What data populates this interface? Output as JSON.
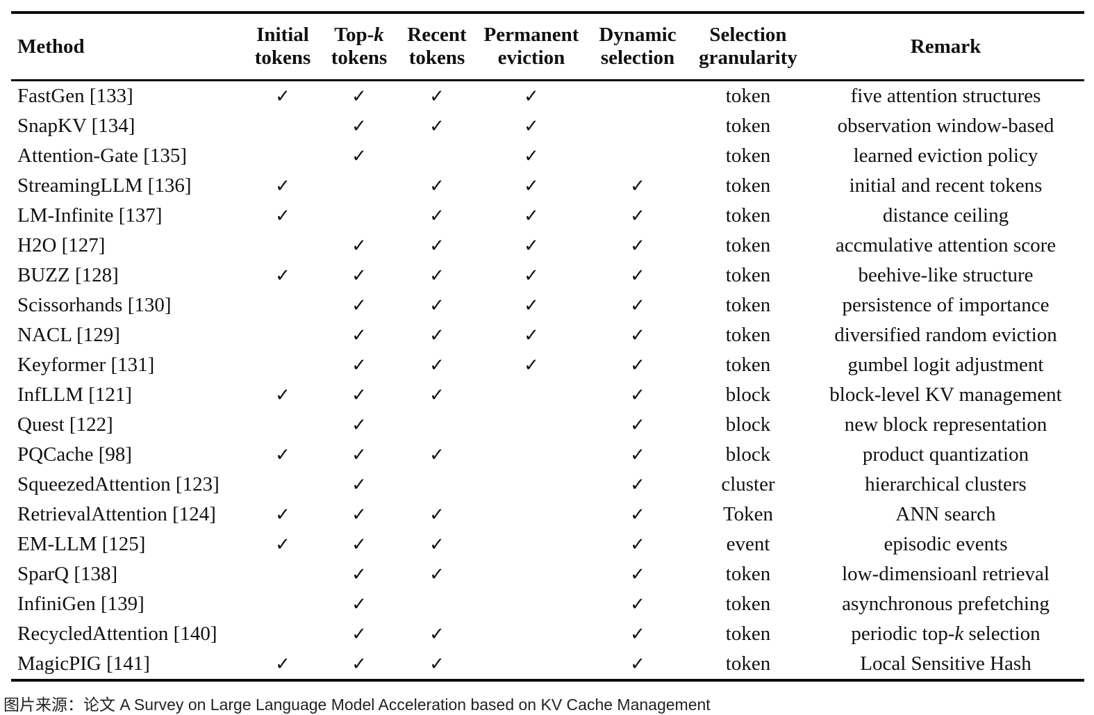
{
  "table": {
    "check_glyph": "✓",
    "columns": [
      {
        "key": "method",
        "label": "Method"
      },
      {
        "key": "initial",
        "label": "Initial tokens"
      },
      {
        "key": "topk",
        "label": [
          "Top-",
          {
            "i": "k"
          },
          " tokens"
        ]
      },
      {
        "key": "recent",
        "label": "Recent tokens"
      },
      {
        "key": "permanent",
        "label": "Permanent eviction"
      },
      {
        "key": "dynamic",
        "label": "Dynamic selection"
      },
      {
        "key": "granularity",
        "label": "Selection granularity"
      },
      {
        "key": "remark",
        "label": "Remark"
      }
    ],
    "rows": [
      {
        "method": "FastGen [133]",
        "initial": true,
        "topk": true,
        "recent": true,
        "permanent": true,
        "dynamic": false,
        "granularity": "token",
        "remark": "five attention structures"
      },
      {
        "method": "SnapKV [134]",
        "initial": false,
        "topk": true,
        "recent": true,
        "permanent": true,
        "dynamic": false,
        "granularity": "token",
        "remark": "observation window-based"
      },
      {
        "method": "Attention-Gate [135]",
        "initial": false,
        "topk": true,
        "recent": false,
        "permanent": true,
        "dynamic": false,
        "granularity": "token",
        "remark": "learned eviction policy"
      },
      {
        "method": "StreamingLLM [136]",
        "initial": true,
        "topk": false,
        "recent": true,
        "permanent": true,
        "dynamic": true,
        "granularity": "token",
        "remark": "initial and recent tokens"
      },
      {
        "method": "LM-Infinite [137]",
        "initial": true,
        "topk": false,
        "recent": true,
        "permanent": true,
        "dynamic": true,
        "granularity": "token",
        "remark": "distance ceiling"
      },
      {
        "method": "H2O [127]",
        "initial": false,
        "topk": true,
        "recent": true,
        "permanent": true,
        "dynamic": true,
        "granularity": "token",
        "remark": "accmulative attention score"
      },
      {
        "method": "BUZZ [128]",
        "initial": true,
        "topk": true,
        "recent": true,
        "permanent": true,
        "dynamic": true,
        "granularity": "token",
        "remark": "beehive-like structure"
      },
      {
        "method": "Scissorhands [130]",
        "initial": false,
        "topk": true,
        "recent": true,
        "permanent": true,
        "dynamic": true,
        "granularity": "token",
        "remark": "persistence of importance"
      },
      {
        "method": "NACL [129]",
        "initial": false,
        "topk": true,
        "recent": true,
        "permanent": true,
        "dynamic": true,
        "granularity": "token",
        "remark": "diversified random eviction"
      },
      {
        "method": "Keyformer [131]",
        "initial": false,
        "topk": true,
        "recent": true,
        "permanent": true,
        "dynamic": true,
        "granularity": "token",
        "remark": "gumbel logit adjustment"
      },
      {
        "method": "InfLLM [121]",
        "initial": true,
        "topk": true,
        "recent": true,
        "permanent": false,
        "dynamic": true,
        "granularity": "block",
        "remark": "block-level KV management"
      },
      {
        "method": "Quest [122]",
        "initial": false,
        "topk": true,
        "recent": false,
        "permanent": false,
        "dynamic": true,
        "granularity": "block",
        "remark": "new block representation"
      },
      {
        "method": "PQCache [98]",
        "initial": true,
        "topk": true,
        "recent": true,
        "permanent": false,
        "dynamic": true,
        "granularity": "block",
        "remark": "product quantization"
      },
      {
        "method": "SqueezedAttention [123]",
        "initial": false,
        "topk": true,
        "recent": false,
        "permanent": false,
        "dynamic": true,
        "granularity": "cluster",
        "remark": "hierarchical clusters"
      },
      {
        "method": "RetrievalAttention [124]",
        "initial": true,
        "topk": true,
        "recent": true,
        "permanent": false,
        "dynamic": true,
        "granularity": "Token",
        "remark": "ANN search"
      },
      {
        "method": "EM-LLM [125]",
        "initial": true,
        "topk": true,
        "recent": true,
        "permanent": false,
        "dynamic": true,
        "granularity": "event",
        "remark": "episodic events"
      },
      {
        "method": "SparQ [138]",
        "initial": false,
        "topk": true,
        "recent": true,
        "permanent": false,
        "dynamic": true,
        "granularity": "token",
        "remark": "low-dimensioanl retrieval"
      },
      {
        "method": "InfiniGen [139]",
        "initial": false,
        "topk": true,
        "recent": false,
        "permanent": false,
        "dynamic": true,
        "granularity": "token",
        "remark": "asynchronous prefetching"
      },
      {
        "method": "RecycledAttention [140]",
        "initial": false,
        "topk": true,
        "recent": true,
        "permanent": false,
        "dynamic": true,
        "granularity": "token",
        "remark": [
          "periodic top-",
          {
            "i": "k"
          },
          " selection"
        ]
      },
      {
        "method": "MagicPIG [141]",
        "initial": true,
        "topk": true,
        "recent": true,
        "permanent": false,
        "dynamic": true,
        "granularity": "token",
        "remark": "Local Sensitive Hash"
      }
    ]
  },
  "caption": "图片来源：论文 A Survey on Large Language Model Acceleration based on KV Cache Management"
}
